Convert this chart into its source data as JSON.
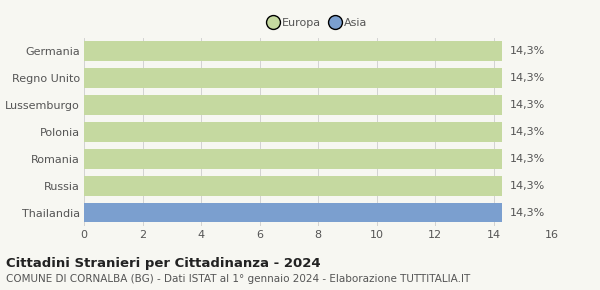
{
  "categories": [
    "Germania",
    "Regno Unito",
    "Lussemburgo",
    "Polonia",
    "Romania",
    "Russia",
    "Thailandia"
  ],
  "values": [
    14.3,
    14.3,
    14.3,
    14.3,
    14.3,
    14.3,
    14.3
  ],
  "bar_colors": [
    "#c5d9a0",
    "#c5d9a0",
    "#c5d9a0",
    "#c5d9a0",
    "#c5d9a0",
    "#c5d9a0",
    "#7b9fcf"
  ],
  "legend_labels": [
    "Europa",
    "Asia"
  ],
  "legend_colors": [
    "#c5d9a0",
    "#7b9fcf"
  ],
  "value_labels": [
    "14,3%",
    "14,3%",
    "14,3%",
    "14,3%",
    "14,3%",
    "14,3%",
    "14,3%"
  ],
  "xlim": [
    0,
    16
  ],
  "xticks": [
    0,
    2,
    4,
    6,
    8,
    10,
    12,
    14,
    16
  ],
  "title": "Cittadini Stranieri per Cittadinanza - 2024",
  "subtitle": "COMUNE DI CORNALBA (BG) - Dati ISTAT al 1° gennaio 2024 - Elaborazione TUTTITALIA.IT",
  "background_color": "#f7f7f2",
  "title_fontsize": 9.5,
  "subtitle_fontsize": 7.5,
  "tick_fontsize": 8,
  "value_fontsize": 8,
  "bar_height": 0.72
}
